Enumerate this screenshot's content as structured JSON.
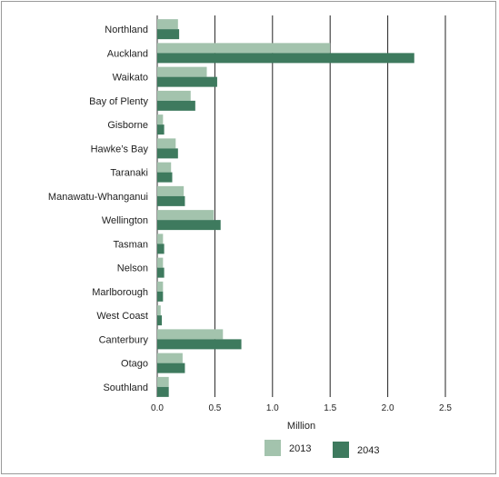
{
  "chart_data": {
    "type": "bar",
    "orientation": "horizontal",
    "categories": [
      "Northland",
      "Auckland",
      "Waikato",
      "Bay of Plenty",
      "Gisborne",
      "Hawke’s Bay",
      "Taranaki",
      "Manawatu-Whanganui",
      "Wellington",
      "Tasman",
      "Nelson",
      "Marlborough",
      "West Coast",
      "Canterbury",
      "Otago",
      "Southland"
    ],
    "series": [
      {
        "name": "2013",
        "color": "#a3c3ad",
        "values": [
          0.18,
          1.5,
          0.43,
          0.29,
          0.05,
          0.16,
          0.12,
          0.23,
          0.49,
          0.05,
          0.05,
          0.05,
          0.03,
          0.57,
          0.22,
          0.1
        ]
      },
      {
        "name": "2043",
        "color": "#3e7a5e",
        "values": [
          0.19,
          2.23,
          0.52,
          0.33,
          0.06,
          0.18,
          0.13,
          0.24,
          0.55,
          0.06,
          0.06,
          0.05,
          0.04,
          0.73,
          0.24,
          0.1
        ]
      }
    ],
    "xlabel": "Million",
    "xlim": [
      0,
      2.5
    ],
    "xticks": [
      "0.0",
      "0.5",
      "1.0",
      "1.5",
      "2.0",
      "2.5"
    ],
    "grid": true,
    "legend_position": "bottom"
  }
}
